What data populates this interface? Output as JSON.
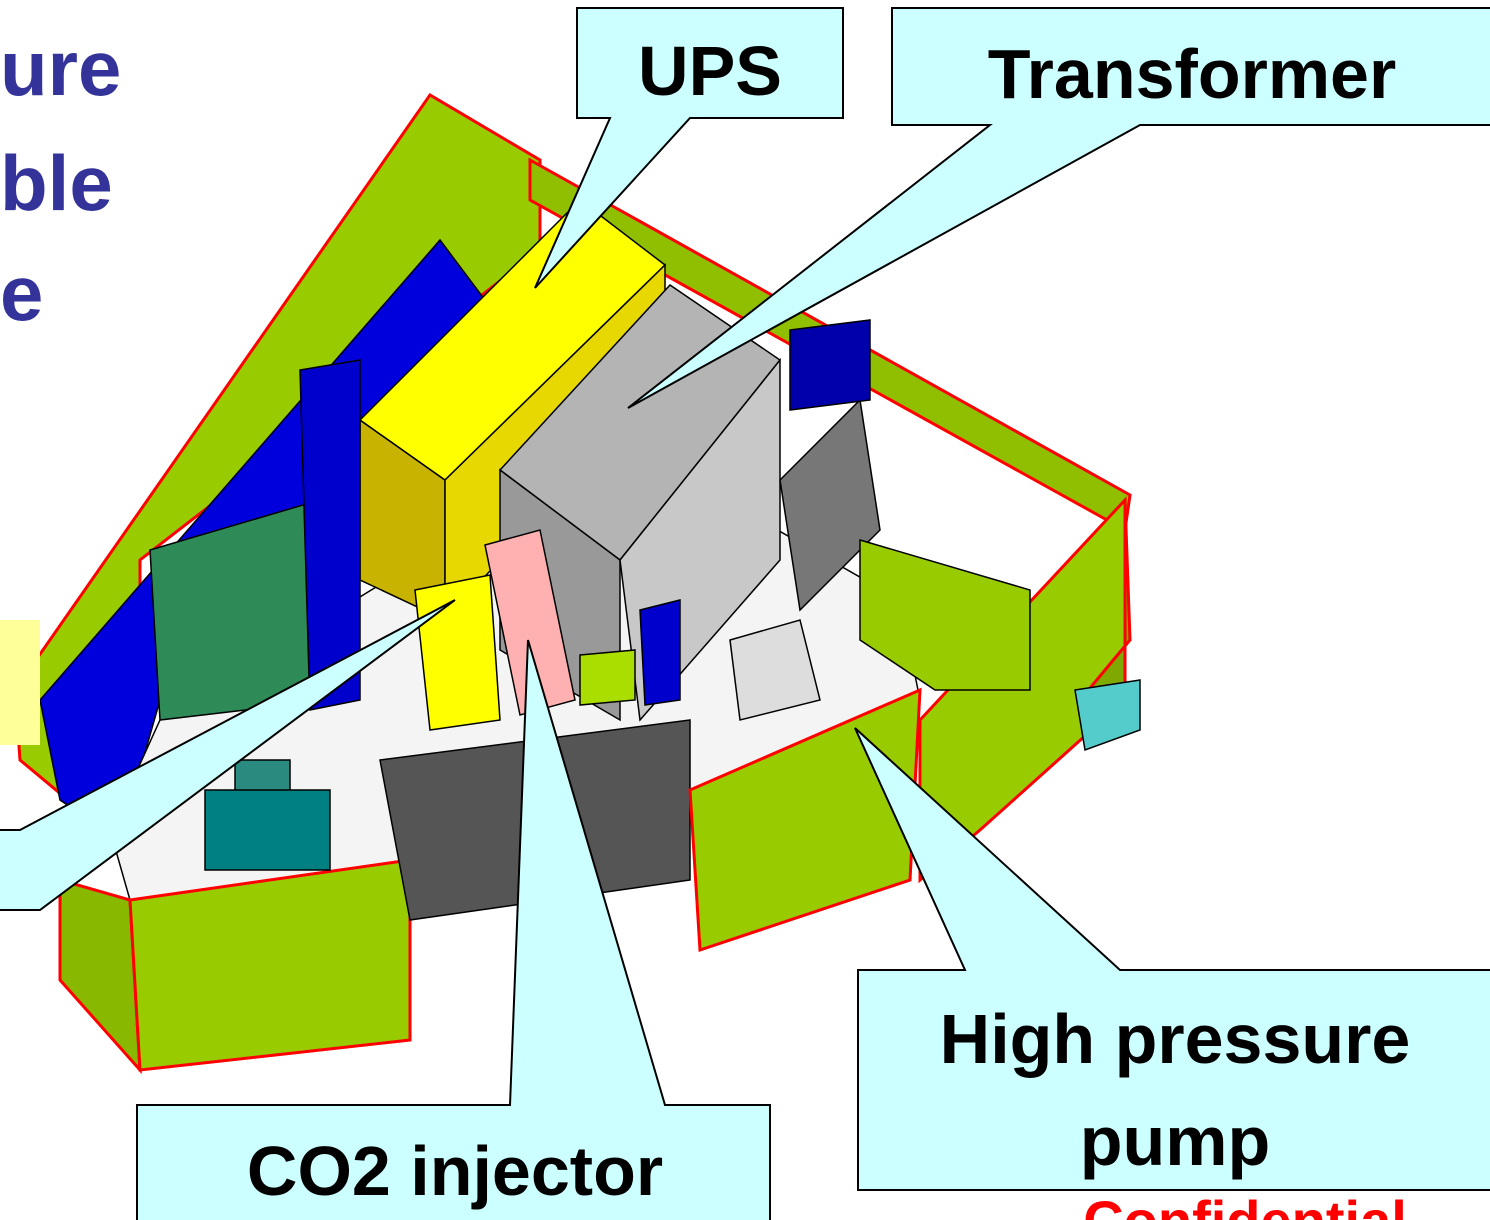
{
  "slide": {
    "title_fragments": [
      "ure",
      "ble",
      "e"
    ],
    "callouts": {
      "ups": "UPS",
      "transformer": "Transformer",
      "co2_injector": "CO2 injector",
      "high_pressure_pump": [
        "High pressure",
        "pump"
      ]
    },
    "footer": {
      "confidential": "Confidential"
    }
  }
}
